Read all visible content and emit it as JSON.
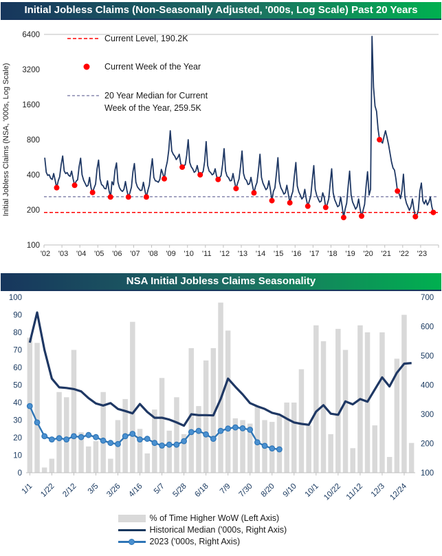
{
  "top_chart": {
    "title": "Initial Jobless Claims (Non-Seasonally Adjusted, '000s, Log Scale) Past 20 Years",
    "y_axis_label": "Initial Jobless Claims (NSA, '000s, Log Scale)",
    "legend": {
      "current_level_label": "Current Level, 190.2K",
      "current_week_label": "Current Week of the Year",
      "median_label_line1": "20 Year Median for Current",
      "median_label_line2": "Week of the Year, 259.5K"
    }
  },
  "bottom_chart": {
    "title": "NSA Initial Jobless Claims Seasonality",
    "legend": [
      {
        "type": "bar",
        "label": "% of Time Higher WoW (Left Axis)"
      },
      {
        "type": "line",
        "label": "Historical Median ('000s, Right Axis)"
      },
      {
        "type": "line-marker",
        "label": "2023 ('000s, Right Axis)"
      }
    ]
  },
  "colors": {
    "navy": "#17375e",
    "series_navy": "#1f3864",
    "red": "#ff0000",
    "median_dash": "#6f6f9d",
    "bar_gray": "#d9d9d9",
    "blue_2023": "#2e75b6",
    "blue_marker": "#4a90d0",
    "axis_gray": "#bfbfbf",
    "tick_text": "#17375e"
  },
  "chart_data": [
    {
      "type": "line",
      "scale": "log2",
      "ylim": [
        100,
        6400
      ],
      "y_ticks": [
        6400,
        3200,
        1600,
        800,
        400,
        200,
        100
      ],
      "x_ticks": [
        "'02",
        "'03",
        "'04",
        "'05",
        "'06",
        "'07",
        "'08",
        "'09",
        "'10",
        "'11",
        "'12",
        "'13",
        "'14",
        "'15",
        "'16",
        "'17",
        "'18",
        "'19",
        "'20",
        "'21",
        "'22",
        "'23"
      ],
      "x_range_years": [
        2002,
        2024
      ],
      "title": "Initial Jobless Claims (Non-Seasonally Adjusted, '000s, Log Scale) Past 20 Years",
      "ylabel": "Initial Jobless Claims (NSA, '000s, Log Scale)",
      "series_name": "Initial Jobless Claims (NSA, '000s)",
      "points_per_year": 12,
      "values_by_year": {
        "2002": [
          560,
          420,
          395,
          400,
          372,
          365,
          410,
          358,
          310,
          355,
          385,
          490
        ],
        "2003": [
          580,
          432,
          410,
          418,
          395,
          388,
          430,
          368,
          325,
          352,
          362,
          470
        ],
        "2004": [
          555,
          400,
          360,
          338,
          318,
          325,
          380,
          308,
          282,
          308,
          332,
          450
        ],
        "2005": [
          535,
          368,
          330,
          322,
          305,
          303,
          355,
          293,
          258,
          348,
          328,
          440
        ],
        "2006": [
          505,
          345,
          310,
          295,
          288,
          300,
          350,
          293,
          258,
          280,
          313,
          425
        ],
        "2007": [
          500,
          345,
          315,
          303,
          293,
          295,
          345,
          293,
          258,
          293,
          328,
          440
        ],
        "2008": [
          550,
          380,
          355,
          352,
          345,
          365,
          445,
          408,
          370,
          455,
          520,
          650
        ],
        "2009": [
          955,
          640,
          600,
          578,
          540,
          563,
          600,
          498,
          465,
          478,
          488,
          590
        ],
        "2010": [
          800,
          510,
          468,
          450,
          420,
          430,
          480,
          418,
          400,
          408,
          428,
          520
        ],
        "2011": [
          770,
          480,
          430,
          418,
          400,
          408,
          450,
          388,
          365,
          378,
          393,
          490
        ],
        "2012": [
          670,
          430,
          390,
          378,
          355,
          358,
          410,
          348,
          305,
          338,
          368,
          470
        ],
        "2013": [
          640,
          410,
          370,
          358,
          330,
          335,
          380,
          323,
          280,
          318,
          343,
          440
        ],
        "2014": [
          600,
          380,
          340,
          318,
          298,
          308,
          355,
          298,
          240,
          288,
          308,
          410
        ],
        "2015": [
          560,
          350,
          310,
          293,
          273,
          280,
          325,
          273,
          230,
          263,
          288,
          390
        ],
        "2016": [
          510,
          320,
          285,
          268,
          248,
          258,
          300,
          248,
          215,
          238,
          263,
          360
        ],
        "2017": [
          480,
          300,
          265,
          248,
          233,
          238,
          280,
          255,
          210,
          223,
          248,
          340
        ],
        "2018": [
          450,
          280,
          245,
          228,
          213,
          218,
          258,
          213,
          172,
          203,
          228,
          320
        ],
        "2019": [
          430,
          268,
          233,
          218,
          203,
          213,
          248,
          203,
          177,
          198,
          223,
          315
        ],
        "2020": [
          425,
          268,
          300,
          6150,
          2250,
          1550,
          1400,
          1000,
          800,
          775,
          748,
          850
        ],
        "2021": [
          955,
          838,
          728,
          618,
          518,
          458,
          438,
          368,
          290,
          278,
          250,
          292
        ],
        "2022": [
          405,
          258,
          228,
          213,
          198,
          213,
          248,
          203,
          175,
          180,
          200,
          290
        ],
        "2023": [
          340,
          238,
          225,
          243,
          220,
          233,
          258,
          213,
          190.2
        ]
      },
      "current_week_points": {
        "name": "Current Week of the Year",
        "years": [
          2002,
          2003,
          2004,
          2005,
          2006,
          2007,
          2008,
          2009,
          2010,
          2011,
          2012,
          2013,
          2014,
          2015,
          2016,
          2017,
          2018,
          2019,
          2020,
          2021,
          2022,
          2023
        ],
        "values": [
          310,
          325,
          282,
          258,
          258,
          258,
          370,
          465,
          400,
          365,
          305,
          280,
          240,
          230,
          215,
          210,
          172,
          177,
          800,
          290,
          175,
          190.2
        ],
        "week_fraction_of_year": 0.708
      },
      "ref_lines": [
        {
          "name": "Current Level",
          "value": 190.2,
          "color": "#ff0000"
        },
        {
          "name": "20 Year Median for Current Week of the Year",
          "value": 259.5,
          "color": "#6f6f9d"
        }
      ]
    },
    {
      "type": "combo-bar-line",
      "title": "NSA Initial Jobless Claims Seasonality",
      "weeks": 53,
      "ylim_left": [
        0,
        100
      ],
      "ylim_right": [
        100,
        700
      ],
      "y_ticks_left": [
        0,
        10,
        20,
        30,
        40,
        50,
        60,
        70,
        80,
        90,
        100
      ],
      "y_ticks_right": [
        100,
        200,
        300,
        400,
        500,
        600,
        700
      ],
      "x_tick_weeks": [
        1,
        4,
        7,
        10,
        13,
        16,
        19,
        22,
        25,
        28,
        31,
        34,
        37,
        40,
        43,
        46,
        49,
        52
      ],
      "x_tick_labels": [
        "1/1",
        "1/22",
        "2/12",
        "3/5",
        "3/26",
        "4/16",
        "5/7",
        "5/28",
        "6/18",
        "7/9",
        "7/30",
        "8/20",
        "9/10",
        "10/1",
        "10/22",
        "11/12",
        "12/3",
        "12/24"
      ],
      "bar_series": {
        "name": "% of Time Higher WoW (Left Axis)",
        "values": [
          77,
          74,
          3,
          8,
          46,
          43,
          70,
          23,
          15,
          18,
          46,
          8,
          30,
          42,
          86,
          25,
          11,
          36,
          54,
          24,
          43,
          22,
          71,
          38,
          64,
          71,
          97,
          81,
          31,
          30,
          28,
          38,
          30,
          29,
          33,
          40,
          40,
          59,
          27,
          84,
          75,
          22,
          82,
          70,
          14,
          84,
          80,
          27,
          80,
          9,
          65,
          90,
          17
        ]
      },
      "median_series": {
        "name": "Historical Median ('000s, Right Axis)",
        "values": [
          545,
          648,
          520,
          422,
          392,
          390,
          386,
          378,
          355,
          337,
          330,
          338,
          318,
          311,
          303,
          335,
          308,
          288,
          288,
          282,
          272,
          261,
          300,
          297,
          297,
          296,
          352,
          422,
          394,
          368,
          338,
          327,
          318,
          305,
          299,
          285,
          272,
          267,
          264,
          309,
          331,
          302,
          298,
          344,
          334,
          352,
          343,
          385,
          426,
          395,
          442,
          473,
          475
        ]
      },
      "y2023_series": {
        "name": "2023 ('000s, Right Axis)",
        "values": [
          328,
          272,
          225,
          214,
          218,
          214,
          225,
          222,
          229,
          222,
          210,
          202,
          198,
          225,
          233,
          214,
          216,
          202,
          193,
          196,
          196,
          208,
          239,
          243,
          231,
          216,
          243,
          251,
          255,
          252,
          247,
          204,
          192,
          183,
          180
        ]
      }
    }
  ]
}
